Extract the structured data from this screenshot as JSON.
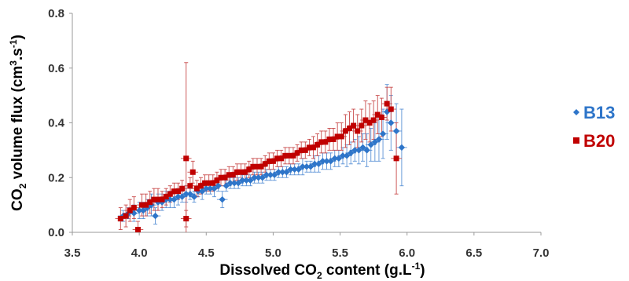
{
  "chart_data": {
    "type": "scatter",
    "xlabel": {
      "pre": "Dissolved CO",
      "sub": "2",
      "mid": " content (g.L",
      "sup": "-1",
      "post": ")"
    },
    "ylabel": {
      "pre": "CO",
      "sub": "2",
      "mid": " volume flux (cm",
      "sup": "3",
      "mid2": ".s",
      "sup2": "-1",
      "post": ")"
    },
    "xlim": [
      3.5,
      7.0
    ],
    "ylim": [
      0.0,
      0.8
    ],
    "x_ticks": [
      "3.5",
      "4.0",
      "4.5",
      "5.0",
      "5.5",
      "6.0",
      "6.5",
      "7.0"
    ],
    "y_ticks": [
      "0.0",
      "0.2",
      "0.4",
      "0.6",
      "0.8"
    ],
    "grid": false,
    "legend_position": "right",
    "series": [
      {
        "name": "B13",
        "color": "#2e75c9",
        "marker": "diamond",
        "points": [
          [
            3.88,
            0.06,
            0.02
          ],
          [
            3.92,
            0.07,
            0.02
          ],
          [
            3.96,
            0.07,
            0.03
          ],
          [
            4.0,
            0.08,
            0.03
          ],
          [
            4.03,
            0.08,
            0.03
          ],
          [
            4.06,
            0.09,
            0.03
          ],
          [
            4.09,
            0.1,
            0.04
          ],
          [
            4.12,
            0.06,
            0.03
          ],
          [
            4.14,
            0.11,
            0.03
          ],
          [
            4.17,
            0.11,
            0.03
          ],
          [
            4.2,
            0.12,
            0.03
          ],
          [
            4.23,
            0.12,
            0.03
          ],
          [
            4.26,
            0.12,
            0.03
          ],
          [
            4.29,
            0.13,
            0.03
          ],
          [
            4.32,
            0.13,
            0.02
          ],
          [
            4.35,
            0.14,
            0.03
          ],
          [
            4.38,
            0.14,
            0.02
          ],
          [
            4.41,
            0.13,
            0.02
          ],
          [
            4.44,
            0.15,
            0.02
          ],
          [
            4.47,
            0.15,
            0.03
          ],
          [
            4.5,
            0.16,
            0.02
          ],
          [
            4.53,
            0.16,
            0.02
          ],
          [
            4.56,
            0.16,
            0.03
          ],
          [
            4.59,
            0.17,
            0.02
          ],
          [
            4.62,
            0.12,
            0.03
          ],
          [
            4.65,
            0.17,
            0.02
          ],
          [
            4.68,
            0.18,
            0.02
          ],
          [
            4.71,
            0.18,
            0.02
          ],
          [
            4.74,
            0.18,
            0.02
          ],
          [
            4.77,
            0.19,
            0.02
          ],
          [
            4.8,
            0.19,
            0.02
          ],
          [
            4.83,
            0.19,
            0.02
          ],
          [
            4.86,
            0.2,
            0.02
          ],
          [
            4.89,
            0.2,
            0.02
          ],
          [
            4.92,
            0.2,
            0.02
          ],
          [
            4.95,
            0.21,
            0.02
          ],
          [
            4.98,
            0.21,
            0.02
          ],
          [
            5.01,
            0.21,
            0.02
          ],
          [
            5.04,
            0.22,
            0.02
          ],
          [
            5.07,
            0.22,
            0.02
          ],
          [
            5.1,
            0.22,
            0.02
          ],
          [
            5.13,
            0.23,
            0.02
          ],
          [
            5.16,
            0.23,
            0.02
          ],
          [
            5.19,
            0.23,
            0.02
          ],
          [
            5.22,
            0.24,
            0.03
          ],
          [
            5.25,
            0.24,
            0.02
          ],
          [
            5.28,
            0.24,
            0.02
          ],
          [
            5.31,
            0.25,
            0.03
          ],
          [
            5.34,
            0.25,
            0.03
          ],
          [
            5.37,
            0.26,
            0.03
          ],
          [
            5.4,
            0.26,
            0.03
          ],
          [
            5.43,
            0.26,
            0.03
          ],
          [
            5.46,
            0.27,
            0.03
          ],
          [
            5.49,
            0.27,
            0.03
          ],
          [
            5.52,
            0.28,
            0.03
          ],
          [
            5.55,
            0.28,
            0.04
          ],
          [
            5.58,
            0.29,
            0.04
          ],
          [
            5.61,
            0.3,
            0.04
          ],
          [
            5.64,
            0.3,
            0.05
          ],
          [
            5.67,
            0.31,
            0.05
          ],
          [
            5.7,
            0.3,
            0.06
          ],
          [
            5.73,
            0.32,
            0.06
          ],
          [
            5.76,
            0.33,
            0.07
          ],
          [
            5.79,
            0.34,
            0.08
          ],
          [
            5.82,
            0.36,
            0.09
          ],
          [
            5.85,
            0.44,
            0.1
          ],
          [
            5.88,
            0.4,
            0.1
          ],
          [
            5.92,
            0.37,
            0.1
          ],
          [
            5.96,
            0.31,
            0.14
          ]
        ]
      },
      {
        "name": "B20",
        "color": "#c00000",
        "marker": "square",
        "points": [
          [
            3.86,
            0.05,
            0.04
          ],
          [
            3.9,
            0.06,
            0.04
          ],
          [
            3.93,
            0.08,
            0.04
          ],
          [
            3.96,
            0.09,
            0.04
          ],
          [
            3.99,
            0.01,
            0.03
          ],
          [
            4.02,
            0.1,
            0.04
          ],
          [
            4.05,
            0.1,
            0.04
          ],
          [
            4.08,
            0.11,
            0.04
          ],
          [
            4.11,
            0.12,
            0.04
          ],
          [
            4.14,
            0.12,
            0.04
          ],
          [
            4.17,
            0.12,
            0.03
          ],
          [
            4.2,
            0.13,
            0.03
          ],
          [
            4.23,
            0.14,
            0.03
          ],
          [
            4.26,
            0.15,
            0.03
          ],
          [
            4.29,
            0.15,
            0.03
          ],
          [
            4.32,
            0.16,
            0.03
          ],
          [
            4.35,
            0.27,
            0.35
          ],
          [
            4.35,
            0.05,
            0.03
          ],
          [
            4.38,
            0.17,
            0.03
          ],
          [
            4.4,
            0.22,
            0.04
          ],
          [
            4.43,
            0.16,
            0.03
          ],
          [
            4.46,
            0.17,
            0.03
          ],
          [
            4.49,
            0.18,
            0.03
          ],
          [
            4.52,
            0.18,
            0.03
          ],
          [
            4.55,
            0.18,
            0.03
          ],
          [
            4.58,
            0.19,
            0.03
          ],
          [
            4.61,
            0.2,
            0.03
          ],
          [
            4.64,
            0.2,
            0.03
          ],
          [
            4.67,
            0.21,
            0.03
          ],
          [
            4.7,
            0.21,
            0.03
          ],
          [
            4.73,
            0.22,
            0.03
          ],
          [
            4.76,
            0.22,
            0.03
          ],
          [
            4.79,
            0.22,
            0.03
          ],
          [
            4.82,
            0.23,
            0.03
          ],
          [
            4.85,
            0.24,
            0.03
          ],
          [
            4.88,
            0.24,
            0.03
          ],
          [
            4.91,
            0.24,
            0.03
          ],
          [
            4.94,
            0.25,
            0.03
          ],
          [
            4.97,
            0.26,
            0.03
          ],
          [
            5.0,
            0.26,
            0.03
          ],
          [
            5.03,
            0.27,
            0.03
          ],
          [
            5.06,
            0.27,
            0.03
          ],
          [
            5.09,
            0.28,
            0.03
          ],
          [
            5.12,
            0.28,
            0.03
          ],
          [
            5.15,
            0.28,
            0.03
          ],
          [
            5.18,
            0.29,
            0.03
          ],
          [
            5.21,
            0.3,
            0.03
          ],
          [
            5.24,
            0.3,
            0.03
          ],
          [
            5.27,
            0.31,
            0.03
          ],
          [
            5.3,
            0.31,
            0.04
          ],
          [
            5.33,
            0.32,
            0.04
          ],
          [
            5.36,
            0.33,
            0.04
          ],
          [
            5.39,
            0.33,
            0.04
          ],
          [
            5.42,
            0.34,
            0.04
          ],
          [
            5.45,
            0.34,
            0.04
          ],
          [
            5.48,
            0.35,
            0.05
          ],
          [
            5.51,
            0.35,
            0.05
          ],
          [
            5.54,
            0.37,
            0.06
          ],
          [
            5.57,
            0.38,
            0.06
          ],
          [
            5.6,
            0.39,
            0.06
          ],
          [
            5.63,
            0.37,
            0.06
          ],
          [
            5.66,
            0.39,
            0.06
          ],
          [
            5.69,
            0.41,
            0.07
          ],
          [
            5.72,
            0.4,
            0.07
          ],
          [
            5.75,
            0.41,
            0.07
          ],
          [
            5.78,
            0.43,
            0.07
          ],
          [
            5.81,
            0.42,
            0.07
          ],
          [
            5.85,
            0.47,
            0.06
          ],
          [
            5.88,
            0.45,
            0.08
          ],
          [
            5.92,
            0.27,
            0.13
          ]
        ]
      }
    ]
  }
}
